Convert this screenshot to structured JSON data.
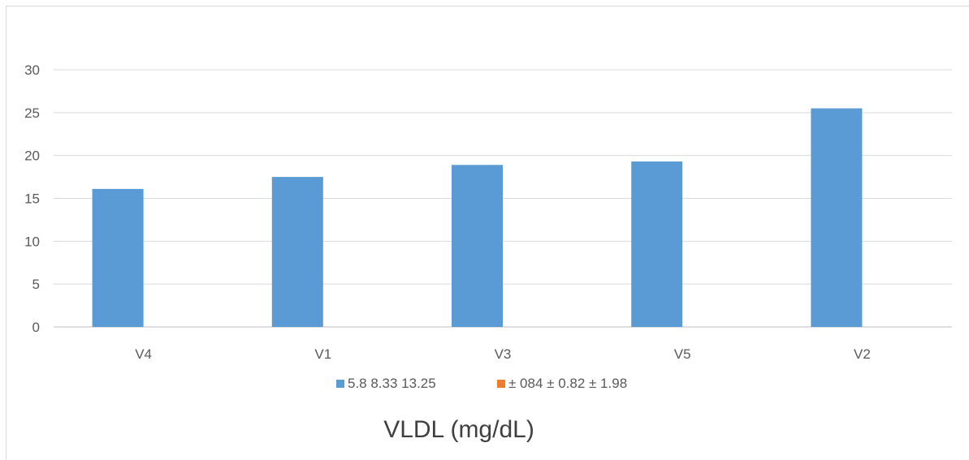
{
  "chart_data": {
    "type": "bar",
    "title": "VLDL (mg/dL)",
    "xlabel": "",
    "ylabel": "",
    "categories": [
      "V4",
      "V1",
      "V3",
      "V5",
      "V2"
    ],
    "series": [
      {
        "name": "5.8 8.33 13.25",
        "color": "#5b9bd5",
        "values": [
          16.1,
          17.5,
          18.9,
          19.3,
          25.5
        ]
      },
      {
        "name": "± 084 ± 0.82 ± 1.98",
        "color": "#ed7d31",
        "values": [
          0,
          0,
          0,
          0,
          0
        ]
      }
    ],
    "ylim": [
      0,
      30
    ],
    "yticks": [
      0,
      5,
      10,
      15,
      20,
      25,
      30
    ],
    "grid": true,
    "legend_position": "bottom"
  }
}
